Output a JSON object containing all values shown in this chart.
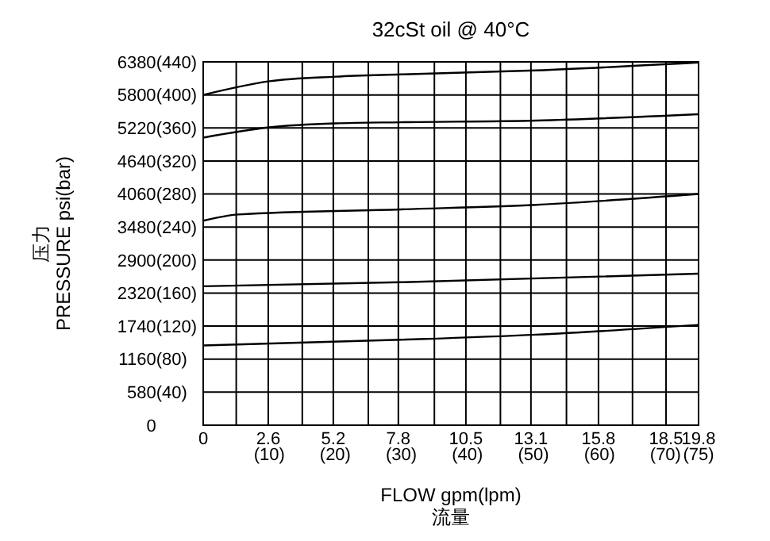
{
  "chart_data": {
    "type": "line",
    "title": "32cSt  oil @ 40°C",
    "xlabel": "FLOW gpm(lpm)\n流量",
    "ylabel": "压力\nPRESSURE psi(bar)",
    "xlim": [
      0,
      19.8
    ],
    "ylim": [
      0,
      6380
    ],
    "xticks": [
      0,
      {
        "value": 1.32,
        "label": null
      },
      2.6,
      {
        "value": 3.96,
        "label": null
      },
      5.2,
      {
        "value": 6.6,
        "label": null
      },
      7.8,
      {
        "value": 9.24,
        "label": null
      },
      10.5,
      {
        "value": 11.88,
        "label": null
      },
      13.1,
      {
        "value": 14.52,
        "label": null
      },
      15.8,
      {
        "value": 17.16,
        "label": null
      },
      18.5,
      19.8
    ],
    "x2lim": [
      0,
      75
    ],
    "x2ticks": [
      {
        "value": 10,
        "label": "(10)"
      },
      {
        "value": 20,
        "label": "(20)"
      },
      {
        "value": 30,
        "label": "(30)"
      },
      {
        "value": 40,
        "label": "(40)"
      },
      {
        "value": 50,
        "label": "(50)"
      },
      {
        "value": 60,
        "label": "(60)"
      },
      {
        "value": 70,
        "label": "(70)"
      },
      {
        "value": 75,
        "label": "(75)"
      }
    ],
    "yticks": [
      0,
      580,
      1160,
      1740,
      2320,
      2900,
      3480,
      4060,
      4640,
      5220,
      5800,
      6380
    ],
    "y2lim": [
      0,
      440
    ],
    "y2ticks": [
      {
        "value": 40,
        "label": "(40)"
      },
      {
        "value": 80,
        "label": "(80)"
      },
      {
        "value": 120,
        "label": "(120)"
      },
      {
        "value": 160,
        "label": "(160)"
      },
      {
        "value": 200,
        "label": "(200)"
      },
      {
        "value": 240,
        "label": "(240)"
      },
      {
        "value": 280,
        "label": "(280)"
      },
      {
        "value": 320,
        "label": "(320)"
      },
      {
        "value": 360,
        "label": "(360)"
      },
      {
        "value": 400,
        "label": "(400)"
      },
      {
        "value": 440,
        "label": "(440)"
      }
    ],
    "grid": true,
    "series": [
      {
        "color": "#000000",
        "x": [
          0,
          2.65,
          5.3,
          7.9,
          13.3,
          19.8
        ],
        "values": [
          5800,
          6040,
          6120,
          6160,
          6230,
          6370
        ]
      },
      {
        "color": "#000000",
        "x": [
          0,
          2.65,
          5.3,
          7.9,
          13.3,
          19.8
        ],
        "values": [
          5050,
          5230,
          5300,
          5320,
          5350,
          5460
        ]
      },
      {
        "color": "#000000",
        "x": [
          0,
          1.4,
          7.9,
          13.3,
          19.8
        ],
        "values": [
          3590,
          3700,
          3790,
          3870,
          4060
        ]
      },
      {
        "color": "#000000",
        "x": [
          0,
          7.9,
          19.8
        ],
        "values": [
          2440,
          2510,
          2660
        ]
      },
      {
        "color": "#000000",
        "x": [
          0,
          7.9,
          13.3,
          19.8
        ],
        "values": [
          1400,
          1500,
          1590,
          1760
        ]
      }
    ]
  }
}
